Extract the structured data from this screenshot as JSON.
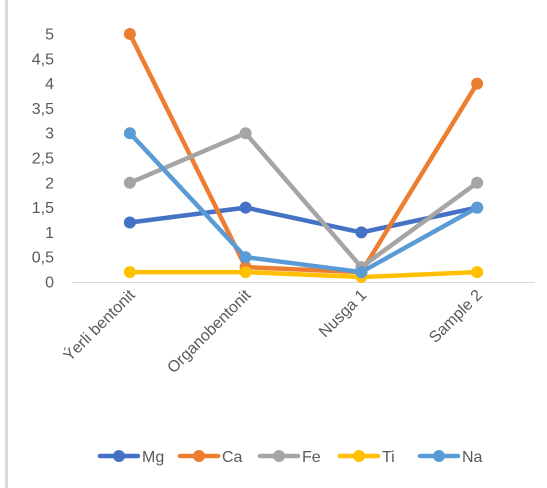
{
  "chart_data": {
    "type": "line",
    "title": "",
    "xlabel": "",
    "ylabel": "",
    "categories": [
      "Ýerli bentonit",
      "Organobentonit",
      "Nusga 1",
      "Sample 2"
    ],
    "ylim": [
      0,
      5
    ],
    "yticks": [
      "0",
      "0,5",
      "1",
      "1,5",
      "2",
      "2,5",
      "3",
      "3,5",
      "4",
      "4,5",
      "5"
    ],
    "grid": false,
    "legend": "bottom",
    "series": [
      {
        "name": "Mg",
        "color": "#4472c4",
        "values": [
          1.2,
          1.5,
          1.0,
          1.5
        ]
      },
      {
        "name": "Ca",
        "color": "#ed7d31",
        "values": [
          5.0,
          0.3,
          0.2,
          4.0
        ]
      },
      {
        "name": "Fe",
        "color": "#a5a5a5",
        "values": [
          2.0,
          3.0,
          0.3,
          2.0
        ]
      },
      {
        "name": "Ti",
        "color": "#ffc000",
        "values": [
          0.2,
          0.2,
          0.1,
          0.2
        ]
      },
      {
        "name": "Na",
        "color": "#5b9bd5",
        "values": [
          3.0,
          0.5,
          0.2,
          1.5
        ]
      }
    ]
  }
}
